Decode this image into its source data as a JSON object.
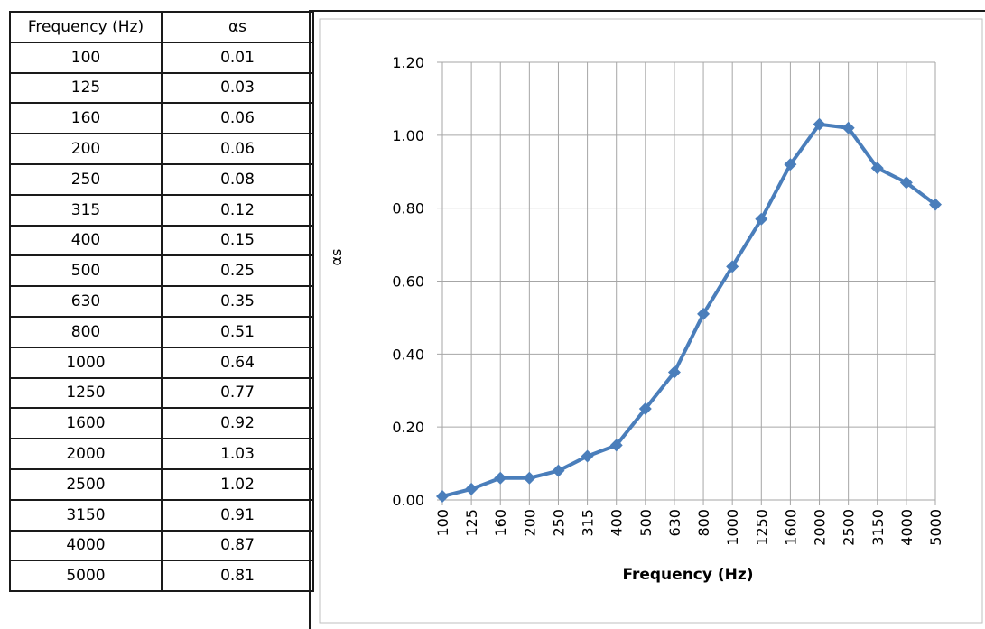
{
  "table": {
    "headers": [
      "Frequency (Hz)",
      "αs"
    ],
    "rows": [
      [
        "100",
        "0.01"
      ],
      [
        "125",
        "0.03"
      ],
      [
        "160",
        "0.06"
      ],
      [
        "200",
        "0.06"
      ],
      [
        "250",
        "0.08"
      ],
      [
        "315",
        "0.12"
      ],
      [
        "400",
        "0.15"
      ],
      [
        "500",
        "0.25"
      ],
      [
        "630",
        "0.35"
      ],
      [
        "800",
        "0.51"
      ],
      [
        "1000",
        "0.64"
      ],
      [
        "1250",
        "0.77"
      ],
      [
        "1600",
        "0.92"
      ],
      [
        "2000",
        "1.03"
      ],
      [
        "2500",
        "1.02"
      ],
      [
        "3150",
        "0.91"
      ],
      [
        "4000",
        "0.87"
      ],
      [
        "5000",
        "0.81"
      ]
    ]
  },
  "chart_data": {
    "type": "line",
    "categories": [
      "100",
      "125",
      "160",
      "200",
      "250",
      "315",
      "400",
      "500",
      "630",
      "800",
      "1000",
      "1250",
      "1600",
      "2000",
      "2500",
      "3150",
      "4000",
      "5000"
    ],
    "series": [
      {
        "values": [
          0.01,
          0.03,
          0.06,
          0.06,
          0.08,
          0.12,
          0.15,
          0.25,
          0.35,
          0.51,
          0.64,
          0.77,
          0.92,
          1.03,
          1.02,
          0.91,
          0.87,
          0.81
        ]
      }
    ],
    "xlabel": "Frequency (Hz)",
    "ylabel": "αs",
    "ylim": [
      0,
      1.2
    ],
    "yticks": [
      "0.00",
      "0.20",
      "0.40",
      "0.60",
      "0.80",
      "1.00",
      "1.20"
    ],
    "grid": true,
    "color": "#4a7ebb"
  }
}
